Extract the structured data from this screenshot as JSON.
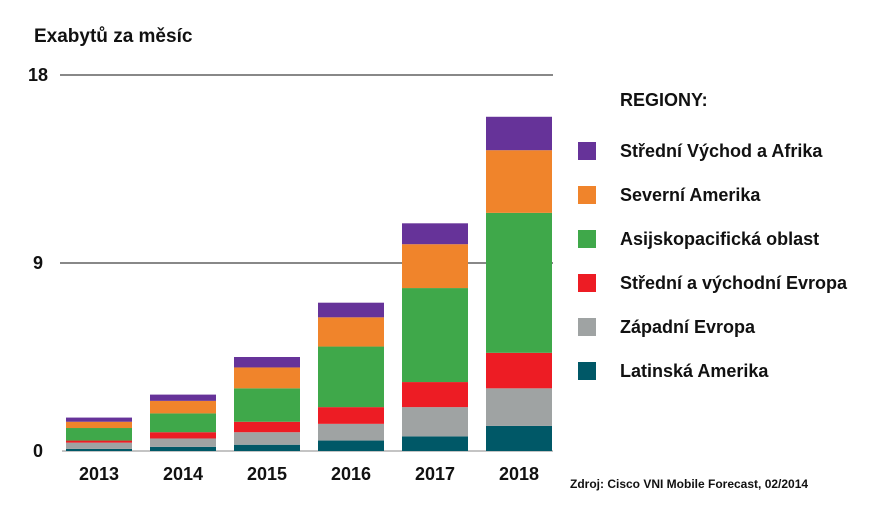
{
  "chart_data": {
    "type": "bar",
    "stacked": true,
    "ylabel": "Exabytů za měsíc",
    "ylim": [
      0,
      18
    ],
    "yticks": [
      0,
      9,
      18
    ],
    "categories": [
      "2013",
      "2014",
      "2015",
      "2016",
      "2017",
      "2018"
    ],
    "legend_title": "REGIONY:",
    "series": [
      {
        "name": "Latinská Amerika",
        "color": "#005867",
        "values": [
          0.1,
          0.2,
          0.3,
          0.5,
          0.7,
          1.2
        ]
      },
      {
        "name": "Západní Evropa",
        "color": "#9fa3a3",
        "values": [
          0.3,
          0.4,
          0.6,
          0.8,
          1.4,
          1.8
        ]
      },
      {
        "name": "Střední a východní Evropa",
        "color": "#ed1c24",
        "values": [
          0.1,
          0.3,
          0.5,
          0.8,
          1.2,
          1.7
        ]
      },
      {
        "name": "Asijskopacifická oblast",
        "color": "#3fa84a",
        "values": [
          0.6,
          0.9,
          1.6,
          2.9,
          4.5,
          6.7
        ]
      },
      {
        "name": "Severní Amerika",
        "color": "#f0842b",
        "values": [
          0.3,
          0.6,
          1.0,
          1.4,
          2.1,
          3.0
        ]
      },
      {
        "name": "Střední Východ a Afrika",
        "color": "#663399",
        "values": [
          0.2,
          0.3,
          0.5,
          0.7,
          1.0,
          1.6
        ]
      }
    ],
    "legend_order": [
      5,
      4,
      3,
      2,
      1,
      0
    ],
    "source": "Zdroj: Cisco VNI Mobile Forecast, 02/2014"
  }
}
